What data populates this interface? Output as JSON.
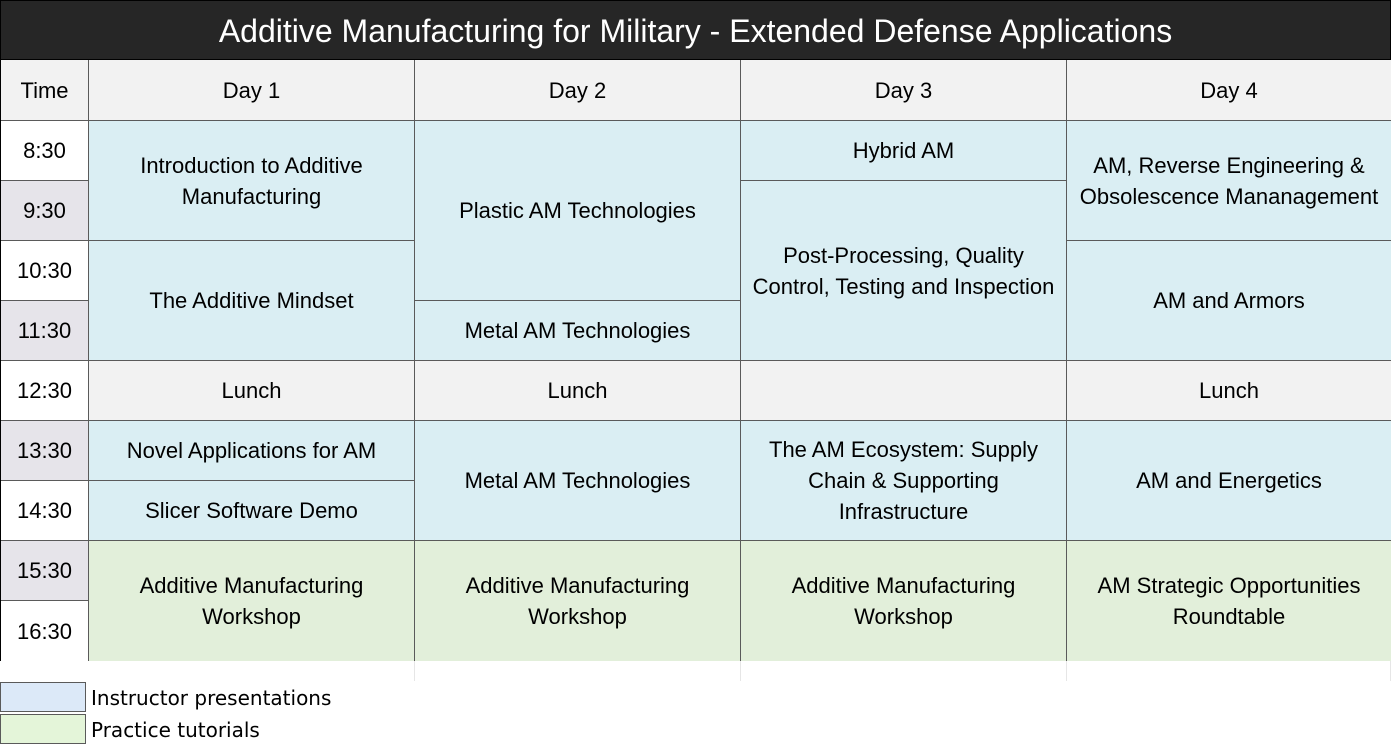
{
  "title": "Additive Manufacturing for Military - Extended Defense Applications",
  "header": {
    "time": "Time",
    "days": [
      "Day 1",
      "Day 2",
      "Day 3",
      "Day 4"
    ]
  },
  "times": [
    "8:30",
    "9:30",
    "10:30",
    "11:30",
    "12:30",
    "13:30",
    "14:30",
    "15:30",
    "16:30"
  ],
  "day1": {
    "s1": "Introduction to Additive Manufacturing",
    "s2": "The Additive Mindset",
    "lunch": "Lunch",
    "s3": "Novel Applications for AM",
    "s4": "Slicer Software Demo",
    "s5": "Additive Manufacturing Workshop"
  },
  "day2": {
    "s1": "Plastic AM Technologies",
    "s2": "Metal AM Technologies",
    "lunch": "Lunch",
    "s3": "Metal AM Technologies",
    "s4": "Additive Manufacturing Workshop"
  },
  "day3": {
    "s1": "Hybrid AM",
    "s2": "Post-Processing, Quality Control, Testing and Inspection",
    "lunch": "",
    "s3": "The AM Ecosystem: Supply Chain & Supporting Infrastructure",
    "s4": "Additive Manufacturing Workshop"
  },
  "day4": {
    "s1": "AM, Reverse Engineering & Obsolescence Mananagement",
    "s2": "AM and Armors",
    "lunch": "Lunch",
    "s3": "AM and Energetics",
    "s4": "AM Strategic Opportunities Roundtable"
  },
  "legend": {
    "presentations": "Instructor presentations",
    "tutorials": "Practice tutorials"
  },
  "colors": {
    "title_bg": "#262626",
    "presentation": "#daeef3",
    "practice": "#e2efda",
    "header": "#f2f2f2"
  }
}
